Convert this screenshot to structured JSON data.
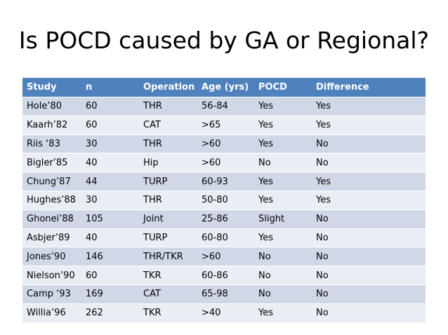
{
  "title": "Is POCD caused by GA or Regional?",
  "colors": {
    "header_bg": "#4f81bd",
    "row_odd_bg": "#d0d8e8",
    "row_even_bg": "#e9edf4"
  },
  "table": {
    "headers": [
      "Study",
      "n",
      "Operation",
      "Age (yrs)",
      "POCD",
      "Difference"
    ],
    "rows": [
      [
        "Hole’80",
        "60",
        "THR",
        "56-84",
        "Yes",
        "Yes"
      ],
      [
        "Kaarh’82",
        "60",
        "CAT",
        ">65",
        "Yes",
        "Yes"
      ],
      [
        "Riis ‘83",
        "30",
        "THR",
        ">60",
        "Yes",
        "No"
      ],
      [
        "Bigler’85",
        "40",
        "Hip",
        ">60",
        "No",
        "No"
      ],
      [
        "Chung’87",
        "44",
        "TURP",
        "60-93",
        "Yes",
        "Yes"
      ],
      [
        "Hughes’88",
        "30",
        "THR",
        "50-80",
        "Yes",
        "Yes"
      ],
      [
        "Ghonei’88",
        "105",
        "Joint",
        "25-86",
        "Slight",
        "No"
      ],
      [
        "Asbjer’89",
        "40",
        "TURP",
        "60-80",
        "Yes",
        "No"
      ],
      [
        "Jones’90",
        "146",
        "THR/TKR",
        ">60",
        "No",
        "No"
      ],
      [
        "Nielson’90",
        "60",
        "TKR",
        "60-86",
        "No",
        "No"
      ],
      [
        "Camp ‘93",
        "169",
        "CAT",
        "65-98",
        "No",
        "No"
      ],
      [
        "Willia’96",
        "262",
        "TKR",
        ">40",
        "Yes",
        "No"
      ]
    ]
  }
}
